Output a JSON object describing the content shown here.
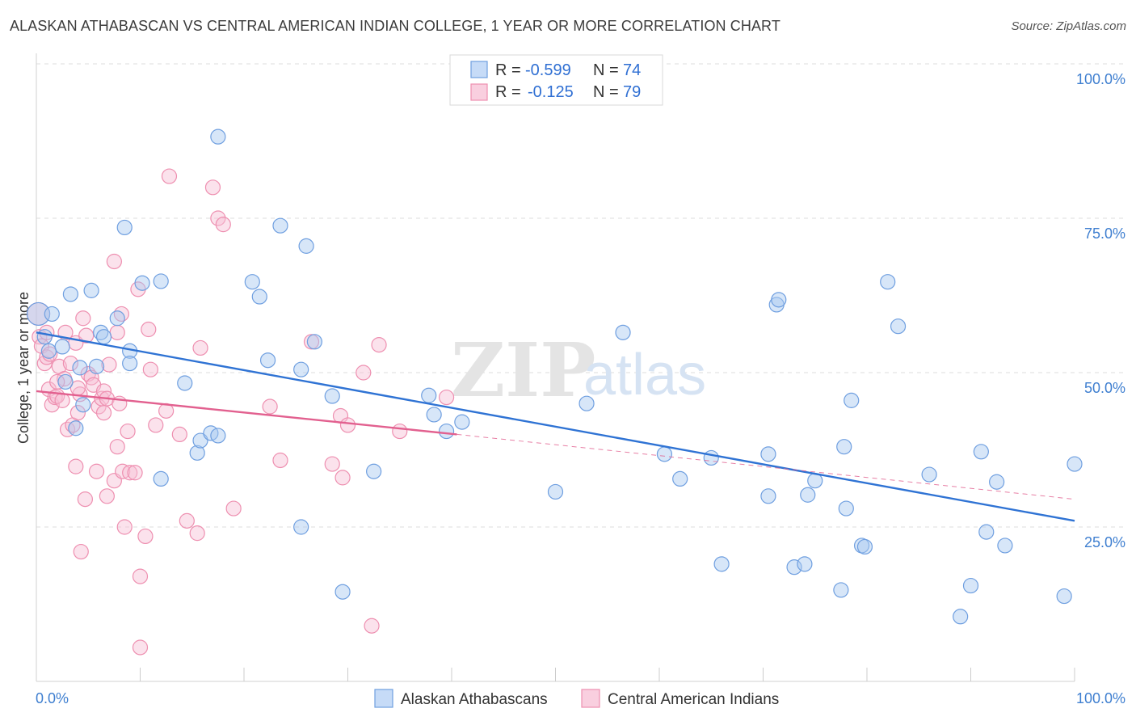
{
  "title": "ALASKAN ATHABASCAN VS CENTRAL AMERICAN INDIAN COLLEGE, 1 YEAR OR MORE CORRELATION CHART",
  "source": "Source: ZipAtlas.com",
  "watermark": {
    "zip": "ZIP",
    "atlas": "atlas"
  },
  "legend": {
    "row1": {
      "r_label": "R =",
      "r_value": "-0.599",
      "n_label": "N =",
      "n_value": "74"
    },
    "row2": {
      "r_label": "R =",
      "r_value": "-0.125",
      "n_label": "N =",
      "n_value": "79"
    }
  },
  "bottom_legend": {
    "series1": "Alaskan Athabascans",
    "series2": "Central American Indians"
  },
  "chart_data": {
    "type": "scatter",
    "title": "ALASKAN ATHABASCAN VS CENTRAL AMERICAN INDIAN COLLEGE, 1 YEAR OR MORE CORRELATION CHART",
    "xlabel": "",
    "ylabel": "College, 1 year or more",
    "xlim": [
      0,
      100
    ],
    "ylim": [
      0,
      100
    ],
    "x_tick_labels": [
      "0.0%",
      "100.0%"
    ],
    "y_ticks": [
      25,
      50,
      75,
      100
    ],
    "y_tick_labels": [
      "25.0%",
      "50.0%",
      "75.0%",
      "100.0%"
    ],
    "grid": "dashed horizontal",
    "legend_position": "top-center",
    "colors": {
      "blue": "#6f9fe0",
      "blue_line": "#2f73d4",
      "pink": "#ee8fb0",
      "pink_line": "#e2608f"
    },
    "series": [
      {
        "name": "Alaskan Athabascans",
        "color": "blue",
        "r": -0.599,
        "n": 74,
        "trend": {
          "x": [
            0,
            100
          ],
          "y": [
            56.5,
            26.0
          ]
        },
        "points": [
          [
            0.2,
            59.5
          ],
          [
            0.8,
            55.8
          ],
          [
            1.5,
            59.5
          ],
          [
            1.2,
            53.5
          ],
          [
            2.5,
            54.2
          ],
          [
            2.8,
            48.5
          ],
          [
            3.3,
            62.7
          ],
          [
            3.8,
            41.0
          ],
          [
            4.2,
            50.8
          ],
          [
            4.5,
            44.8
          ],
          [
            5.3,
            63.3
          ],
          [
            5.8,
            51.0
          ],
          [
            6.2,
            56.5
          ],
          [
            6.5,
            55.8
          ],
          [
            7.8,
            58.8
          ],
          [
            8.5,
            73.5
          ],
          [
            9.0,
            53.5
          ],
          [
            9.0,
            51.5
          ],
          [
            10.2,
            64.5
          ],
          [
            12.0,
            64.8
          ],
          [
            12.0,
            32.8
          ],
          [
            14.3,
            48.3
          ],
          [
            15.5,
            37.0
          ],
          [
            15.8,
            39.0
          ],
          [
            16.8,
            40.2
          ],
          [
            17.5,
            39.8
          ],
          [
            17.5,
            88.2
          ],
          [
            20.8,
            64.7
          ],
          [
            21.5,
            62.3
          ],
          [
            22.3,
            52.0
          ],
          [
            23.5,
            73.8
          ],
          [
            25.5,
            25.0
          ],
          [
            25.5,
            50.5
          ],
          [
            26.0,
            70.5
          ],
          [
            26.8,
            55.0
          ],
          [
            28.5,
            46.2
          ],
          [
            29.5,
            14.5
          ],
          [
            32.5,
            34.0
          ],
          [
            37.8,
            46.3
          ],
          [
            38.3,
            43.2
          ],
          [
            39.5,
            40.5
          ],
          [
            41.0,
            42.0
          ],
          [
            50.0,
            30.7
          ],
          [
            53.0,
            45.0
          ],
          [
            56.5,
            56.5
          ],
          [
            60.5,
            36.8
          ],
          [
            62.0,
            32.8
          ],
          [
            65.0,
            36.2
          ],
          [
            66.0,
            19.0
          ],
          [
            70.5,
            30.0
          ],
          [
            70.5,
            36.8
          ],
          [
            71.3,
            61.0
          ],
          [
            71.5,
            61.8
          ],
          [
            73.0,
            18.5
          ],
          [
            74.0,
            19.0
          ],
          [
            74.3,
            30.2
          ],
          [
            75.0,
            32.5
          ],
          [
            77.5,
            14.8
          ],
          [
            77.8,
            38.0
          ],
          [
            78.0,
            28.0
          ],
          [
            78.5,
            45.5
          ],
          [
            79.5,
            22.0
          ],
          [
            79.8,
            21.8
          ],
          [
            82.0,
            64.7
          ],
          [
            83.0,
            57.5
          ],
          [
            86.0,
            33.5
          ],
          [
            89.0,
            10.5
          ],
          [
            90.0,
            15.5
          ],
          [
            91.0,
            37.2
          ],
          [
            91.5,
            24.2
          ],
          [
            92.5,
            32.3
          ],
          [
            93.3,
            22.0
          ],
          [
            99.0,
            13.8
          ],
          [
            100.0,
            35.2
          ]
        ]
      },
      {
        "name": "Central American Indians",
        "color": "pink",
        "r": -0.125,
        "n": 79,
        "trend": {
          "x": [
            0,
            40.5
          ],
          "y": [
            47.0,
            40.0
          ]
        },
        "trend_dashed": {
          "x": [
            40.5,
            100
          ],
          "y": [
            40.0,
            29.5
          ]
        },
        "points": [
          [
            0.2,
            59.5
          ],
          [
            0.3,
            55.8
          ],
          [
            0.5,
            54.3
          ],
          [
            0.8,
            51.5
          ],
          [
            1.0,
            52.5
          ],
          [
            1.2,
            47.3
          ],
          [
            1.3,
            53.0
          ],
          [
            1.5,
            44.8
          ],
          [
            1.8,
            46.0
          ],
          [
            2.0,
            46.2
          ],
          [
            2.2,
            51.0
          ],
          [
            2.5,
            45.5
          ],
          [
            2.7,
            49.0
          ],
          [
            2.8,
            56.5
          ],
          [
            3.0,
            40.8
          ],
          [
            3.3,
            51.5
          ],
          [
            3.5,
            41.5
          ],
          [
            3.8,
            54.8
          ],
          [
            3.8,
            34.8
          ],
          [
            4.0,
            43.5
          ],
          [
            4.2,
            46.5
          ],
          [
            4.3,
            21.0
          ],
          [
            4.5,
            58.8
          ],
          [
            4.7,
            29.5
          ],
          [
            5.0,
            49.8
          ],
          [
            5.3,
            49.2
          ],
          [
            5.5,
            48.0
          ],
          [
            5.8,
            34.0
          ],
          [
            6.0,
            44.5
          ],
          [
            6.3,
            45.8
          ],
          [
            6.5,
            43.5
          ],
          [
            6.5,
            47.0
          ],
          [
            6.8,
            45.8
          ],
          [
            6.8,
            30.0
          ],
          [
            7.0,
            51.3
          ],
          [
            7.5,
            32.5
          ],
          [
            7.5,
            68.0
          ],
          [
            7.8,
            38.0
          ],
          [
            7.8,
            56.5
          ],
          [
            8.0,
            45.0
          ],
          [
            8.2,
            59.5
          ],
          [
            8.3,
            34.0
          ],
          [
            8.5,
            25.0
          ],
          [
            8.8,
            40.5
          ],
          [
            9.0,
            33.8
          ],
          [
            9.5,
            33.8
          ],
          [
            9.8,
            63.5
          ],
          [
            10.0,
            17.0
          ],
          [
            10.5,
            23.5
          ],
          [
            10.8,
            57.0
          ],
          [
            11.0,
            50.5
          ],
          [
            11.5,
            41.5
          ],
          [
            12.5,
            43.8
          ],
          [
            12.8,
            81.8
          ],
          [
            13.8,
            40.0
          ],
          [
            14.5,
            26.0
          ],
          [
            15.5,
            24.0
          ],
          [
            15.8,
            54.0
          ],
          [
            17.0,
            80.0
          ],
          [
            17.5,
            75.0
          ],
          [
            18.0,
            74.0
          ],
          [
            19.0,
            28.0
          ],
          [
            10.0,
            5.5
          ],
          [
            22.5,
            44.5
          ],
          [
            23.5,
            35.8
          ],
          [
            26.5,
            55.0
          ],
          [
            28.5,
            35.2
          ],
          [
            29.3,
            43.0
          ],
          [
            29.5,
            33.0
          ],
          [
            30.0,
            41.5
          ],
          [
            31.5,
            50.0
          ],
          [
            32.3,
            9.0
          ],
          [
            33.0,
            54.5
          ],
          [
            35.0,
            40.5
          ],
          [
            39.5,
            46.0
          ],
          [
            4.8,
            56.0
          ],
          [
            1.0,
            56.5
          ],
          [
            2.0,
            48.5
          ],
          [
            4.0,
            47.5
          ]
        ]
      }
    ]
  }
}
